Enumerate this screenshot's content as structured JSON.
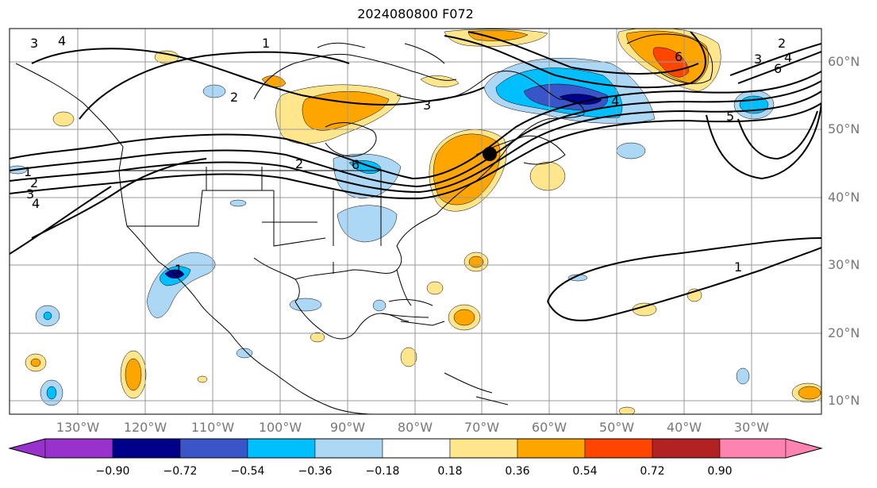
{
  "title": "2024080800 F072",
  "map": {
    "projection": "cylindrical",
    "grid": true,
    "lon_range": [
      -138,
      -16
    ],
    "lat_range": [
      8,
      65
    ],
    "lat_labels": [
      "10°N",
      "20°N",
      "30°N",
      "40°N",
      "50°N",
      "60°N"
    ],
    "lon_labels": [
      "130°W",
      "120°W",
      "110°W",
      "100°W",
      "90°W",
      "80°W",
      "70°W",
      "60°W",
      "50°W",
      "40°W",
      "30°W"
    ],
    "contour_labels": [
      "1",
      "2",
      "3",
      "4",
      "5",
      "6"
    ],
    "marker": {
      "name": "storm-center",
      "lon": -69,
      "lat": 46.5
    }
  },
  "colorbar": {
    "ticks": [
      "−0.90",
      "−0.72",
      "−0.54",
      "−0.36",
      "−0.18",
      "0.18",
      "0.36",
      "0.54",
      "0.72",
      "0.90"
    ],
    "colors": [
      "#9932cc",
      "#00008b",
      "#3a55c8",
      "#00bfff",
      "#add8f5",
      "#ffffff",
      "#ffe68c",
      "#ffa500",
      "#ff4500",
      "#b22222",
      "#ff83b0"
    ]
  }
}
